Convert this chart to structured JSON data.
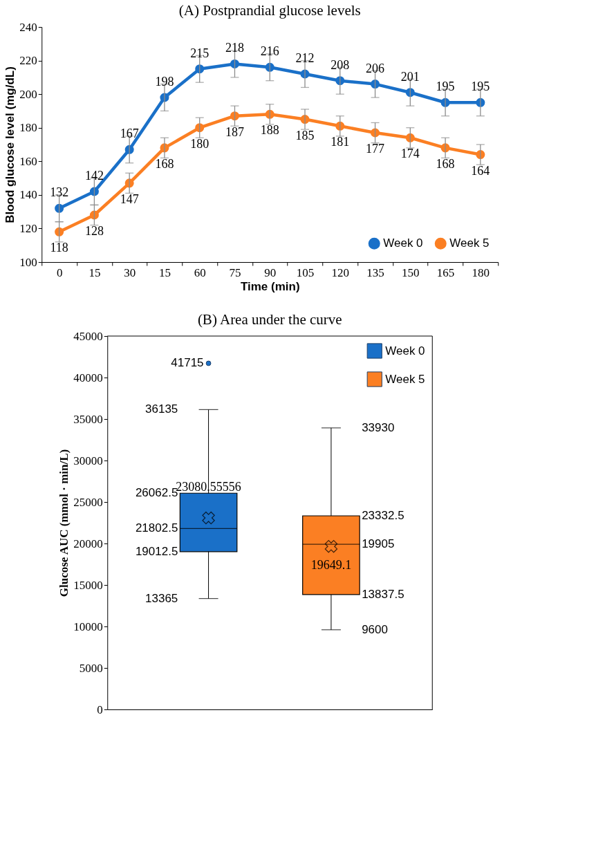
{
  "chart_data": [
    {
      "type": "line",
      "title": "(A) Postprandial glucose levels",
      "xlabel": "Time (min)",
      "ylabel": "Blood glucose level (mg/dL)",
      "categories": [
        "0",
        "15",
        "30",
        "15",
        "60",
        "75",
        "90",
        "105",
        "120",
        "135",
        "150",
        "165",
        "180"
      ],
      "series": [
        {
          "name": "Week 0",
          "color": "#1a70c8",
          "values": [
            132,
            142,
            167,
            198,
            215,
            218,
            216,
            212,
            208,
            206,
            201,
            195,
            195
          ],
          "errors": [
            8,
            8,
            8,
            8,
            8,
            8,
            8,
            8,
            8,
            8,
            8,
            8,
            8
          ]
        },
        {
          "name": "Week 5",
          "color": "#fb7f23",
          "values": [
            118,
            128,
            147,
            168,
            180,
            187,
            188,
            185,
            181,
            177,
            174,
            168,
            164
          ],
          "errors": [
            6,
            6,
            6,
            6,
            6,
            6,
            6,
            6,
            6,
            6,
            6,
            6,
            6
          ]
        }
      ],
      "ylim": [
        100,
        240
      ],
      "yticks": [
        100,
        120,
        140,
        160,
        180,
        200,
        220,
        240
      ],
      "grid": false,
      "legend": "bottom right",
      "marker": "circle",
      "line_style": "solid",
      "data_labels": true
    },
    {
      "type": "box",
      "title": "(B) Area under the curve",
      "ylabel": "Glucose AUC (mmol · min/L)",
      "categories": [
        null
      ],
      "series": [
        {
          "name": "Week 0",
          "color": "#1a70c8",
          "boxes": [
            {
              "low": 13365,
              "q1": 19012.5,
              "median": 21802.5,
              "q3": 26062.5,
              "high": 36135,
              "mean": 23080.55556,
              "outliers": [
                41715
              ]
            }
          ]
        },
        {
          "name": "Week 5",
          "color": "#fb7f23",
          "boxes": [
            {
              "low": 9600,
              "q1": 13837.5,
              "median": 19905,
              "q3": 23332.5,
              "high": 33930,
              "mean": 19649.1
            }
          ]
        }
      ],
      "ylim": [
        0,
        45000
      ],
      "yticks": [
        0,
        5000,
        10000,
        15000,
        20000,
        25000,
        30000,
        35000,
        40000,
        45000
      ],
      "grid": false,
      "legend": "top right",
      "annotations": [
        "41715",
        "36135",
        "26062.5",
        "23080.55556",
        "21802.5",
        "19012.5",
        "13365",
        "33930",
        "23332.5",
        "19649.1",
        "19905",
        "13837.5",
        "9600"
      ]
    }
  ]
}
